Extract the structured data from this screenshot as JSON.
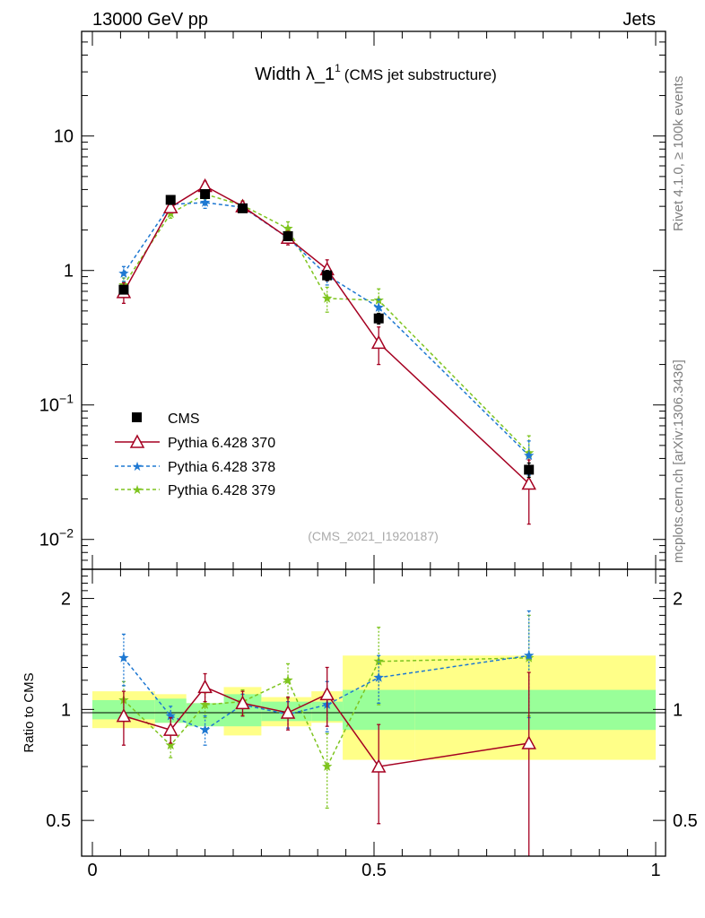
{
  "header": {
    "left": "13000 GeV pp",
    "right": "Jets"
  },
  "side_labels": {
    "rivet": "Rivet 4.1.0, ≥ 100k events",
    "mcplots": "mcplots.cern.ch [arXiv:1306.3436]"
  },
  "colors": {
    "cms": "#000000",
    "p370": "#a50021",
    "p378": "#1e78d2",
    "p379": "#7ec41f",
    "band_yellow": "#ffff88",
    "band_green": "#99ff99"
  },
  "chart_data": [
    {
      "type": "scatter",
      "title_main": "Width λ_1",
      "title_sup": "1",
      "title_sub": "(CMS jet substructure)",
      "watermark": "(CMS_2021_I1920187)",
      "yscale": "log",
      "xlim": [
        0,
        1
      ],
      "ylim": [
        0.006,
        60
      ],
      "yticks": [
        {
          "v": 10,
          "label": "10"
        },
        {
          "v": 1,
          "label": "1"
        },
        {
          "v": 0.1,
          "label": "10",
          "exp": "−1"
        },
        {
          "v": 0.01,
          "label": "10",
          "exp": "−2"
        }
      ],
      "legend": {
        "position": "bottom-left",
        "entries": [
          "CMS",
          "Pythia 6.428 370",
          "Pythia 6.428 378",
          "Pythia 6.428 379"
        ]
      },
      "x": [
        0.0556,
        0.1389,
        0.2,
        0.2667,
        0.3472,
        0.4167,
        0.5083,
        0.775
      ],
      "series": [
        {
          "name": "CMS",
          "values": [
            0.72,
            3.35,
            3.7,
            2.9,
            1.8,
            0.92,
            0.44,
            0.033
          ],
          "err": [
            0.05,
            0.25,
            0.25,
            0.15,
            0.12,
            0.08,
            0.04,
            0.004
          ]
        },
        {
          "name": "Pythia 6.428 370",
          "values": [
            0.69,
            2.95,
            4.25,
            3.0,
            1.75,
            1.02,
            0.29,
            0.026
          ],
          "err": [
            0.12,
            0.25,
            0.35,
            0.25,
            0.2,
            0.18,
            0.09,
            0.013
          ]
        },
        {
          "name": "Pythia 6.428 378",
          "values": [
            0.95,
            3.1,
            3.2,
            2.95,
            1.75,
            0.92,
            0.53,
            0.042
          ],
          "err": [
            0.12,
            0.2,
            0.3,
            0.2,
            0.15,
            0.14,
            0.08,
            0.012
          ]
        },
        {
          "name": "Pythia 6.428 379",
          "values": [
            0.78,
            2.65,
            3.7,
            3.05,
            2.05,
            0.62,
            0.6,
            0.044
          ],
          "err": [
            0.1,
            0.2,
            0.3,
            0.25,
            0.25,
            0.13,
            0.13,
            0.015
          ]
        }
      ]
    },
    {
      "type": "scatter",
      "ylabel": "Ratio to CMS",
      "yscale": "log",
      "xlim": [
        0,
        1
      ],
      "ylim": [
        0.4,
        2.4
      ],
      "yticks": [
        {
          "v": 2,
          "label": "2"
        },
        {
          "v": 1,
          "label": "1"
        },
        {
          "v": 0.5,
          "label": "0.5"
        }
      ],
      "xticks": [
        {
          "v": 0,
          "label": "0"
        },
        {
          "v": 0.5,
          "label": "0.5"
        },
        {
          "v": 1,
          "label": "1"
        }
      ],
      "bins": [
        [
          0,
          0.1111
        ],
        [
          0.1111,
          0.1667
        ],
        [
          0.1667,
          0.2333
        ],
        [
          0.2333,
          0.3
        ],
        [
          0.3,
          0.3889
        ],
        [
          0.3889,
          0.4444
        ],
        [
          0.4444,
          0.5722
        ],
        [
          0.5722,
          1.0
        ]
      ],
      "band_yellow": [
        [
          0.89,
          1.12
        ],
        [
          0.92,
          1.1
        ],
        [
          0.9,
          1.04
        ],
        [
          0.85,
          1.15
        ],
        [
          0.9,
          1.08
        ],
        [
          0.92,
          1.12
        ],
        [
          0.73,
          1.4
        ],
        [
          0.73,
          1.4
        ]
      ],
      "band_green": [
        [
          0.94,
          1.06
        ],
        [
          0.92,
          1.07
        ],
        [
          0.9,
          1.04
        ],
        [
          0.9,
          1.1
        ],
        [
          0.93,
          1.05
        ],
        [
          0.93,
          1.05
        ],
        [
          0.88,
          1.13
        ],
        [
          0.88,
          1.13
        ]
      ],
      "x": [
        0.0556,
        0.1389,
        0.2,
        0.2667,
        0.3472,
        0.4167,
        0.5083,
        0.775
      ],
      "series": [
        {
          "name": "Pythia 6.428 370",
          "values": [
            0.96,
            0.88,
            1.15,
            1.04,
            0.98,
            1.1,
            0.7,
            0.81
          ],
          "err": [
            0.16,
            0.07,
            0.1,
            0.08,
            0.1,
            0.2,
            0.21,
            0.45
          ]
        },
        {
          "name": "Pythia 6.428 378",
          "values": [
            1.38,
            0.96,
            0.88,
            1.03,
            0.97,
            1.03,
            1.22,
            1.4
          ],
          "err": [
            0.22,
            0.06,
            0.08,
            0.07,
            0.08,
            0.16,
            0.18,
            0.45
          ]
        },
        {
          "name": "Pythia 6.428 379",
          "values": [
            1.06,
            0.8,
            1.03,
            1.05,
            1.2,
            0.7,
            1.35,
            1.38
          ],
          "err": [
            0.13,
            0.06,
            0.08,
            0.08,
            0.13,
            0.16,
            0.32,
            0.42
          ]
        }
      ]
    }
  ]
}
